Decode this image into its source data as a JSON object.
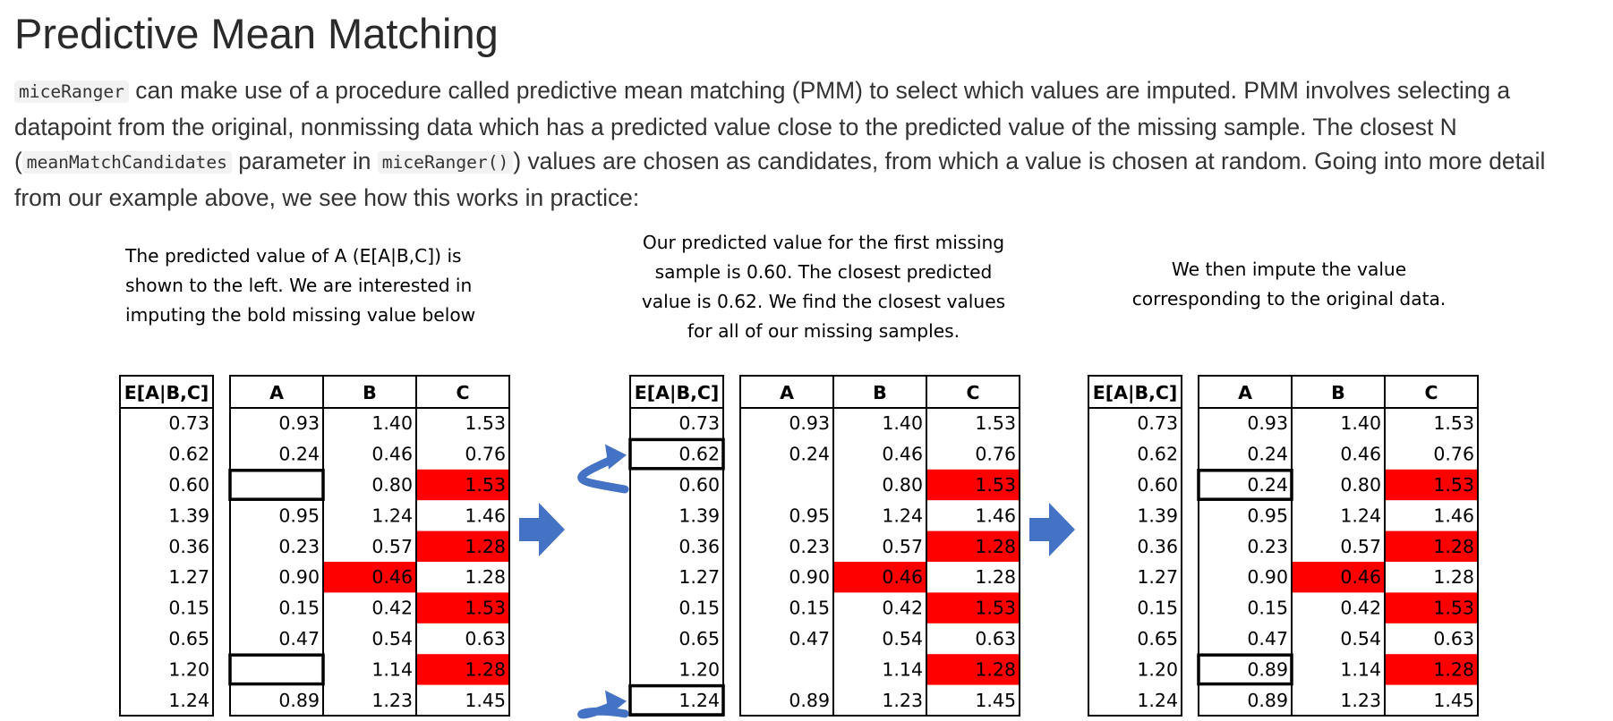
{
  "title": "Predictive Mean Matching",
  "intro": {
    "code_miceRanger": "miceRanger",
    "text_1": " can make use of a procedure called predictive mean matching (PMM) to select which values are imputed. PMM involves selecting a datapoint from the original, nonmissing data which has a predicted value close to the predicted value of the missing sample. The closest N (",
    "code_meanMatchCandidates": "meanMatchCandidates",
    "text_2": " parameter in ",
    "code_miceRanger_fn": "miceRanger()",
    "text_3": ") values are chosen as candidates, from which a value is chosen at random. Going into more detail from our example above, we see how this works in practice:"
  },
  "figure": {
    "captions": [
      "The predicted value of A (E[A|B,C]) is\nshown to the left. We are interested in\nimputing the bold missing value below",
      "Our predicted value for the first missing\nsample is 0.60. The closest predicted\nvalue is 0.62. We find the closest values\nfor all of our missing samples.",
      "We then impute the value\ncorresponding to the original data."
    ],
    "headers": [
      "E[A|B,C]",
      "A",
      "B",
      "C"
    ],
    "predicted": [
      "0.73",
      "0.62",
      "0.60",
      "1.39",
      "0.36",
      "1.27",
      "0.15",
      "0.65",
      "1.20",
      "1.24"
    ],
    "panels": [
      {
        "A": [
          "0.93",
          "0.24",
          "",
          "0.95",
          "0.23",
          "0.90",
          "0.15",
          "0.47",
          "",
          "0.89"
        ],
        "B": [
          "1.40",
          "0.46",
          "0.80",
          "1.24",
          "0.57",
          "0.46",
          "0.42",
          "0.54",
          "1.14",
          "1.23"
        ],
        "C": [
          "1.53",
          "0.76",
          "1.53",
          "1.46",
          "1.28",
          "1.28",
          "1.53",
          "0.63",
          "1.28",
          "1.45"
        ]
      },
      {
        "A": [
          "0.93",
          "0.24",
          "",
          "0.95",
          "0.23",
          "0.90",
          "0.15",
          "0.47",
          "",
          "0.89"
        ],
        "B": [
          "1.40",
          "0.46",
          "0.80",
          "1.24",
          "0.57",
          "0.46",
          "0.42",
          "0.54",
          "1.14",
          "1.23"
        ],
        "C": [
          "1.53",
          "0.76",
          "1.53",
          "1.46",
          "1.28",
          "1.28",
          "1.53",
          "0.63",
          "1.28",
          "1.45"
        ]
      },
      {
        "A": [
          "0.93",
          "0.24",
          "0.24",
          "0.95",
          "0.23",
          "0.90",
          "0.15",
          "0.47",
          "0.89",
          "0.89"
        ],
        "B": [
          "1.40",
          "0.46",
          "0.80",
          "1.24",
          "0.57",
          "0.46",
          "0.42",
          "0.54",
          "1.14",
          "1.23"
        ],
        "C": [
          "1.53",
          "0.76",
          "1.53",
          "1.46",
          "1.28",
          "1.28",
          "1.53",
          "0.63",
          "1.28",
          "1.45"
        ]
      }
    ],
    "red_cells": {
      "B": [
        5
      ],
      "C": [
        2,
        4,
        6,
        8
      ]
    },
    "boxed_predicted_panel2": [
      1,
      9
    ],
    "boxed_A_panel1": [
      2,
      8
    ],
    "boxed_A_panel3": [
      2,
      8
    ],
    "colors": {
      "missing_fill": "#ff0000",
      "arrow": "#4472c4",
      "border": "#000000",
      "text": "#333333",
      "code_bg": "#f2f2f2"
    },
    "icons": [
      "right-arrow-icon",
      "curved-arrow-icon"
    ]
  }
}
